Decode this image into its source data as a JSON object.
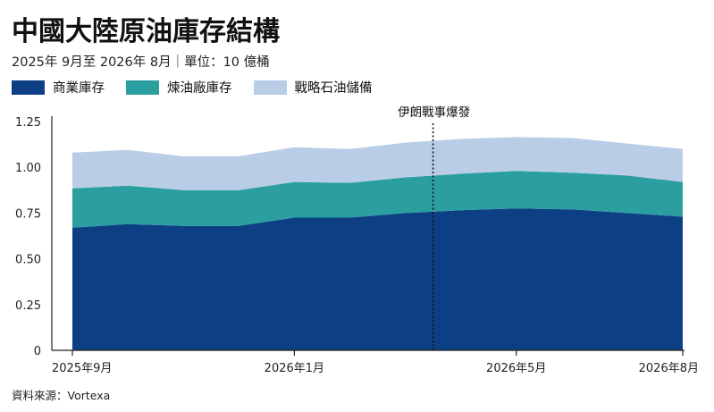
{
  "title": "中國大陸原油庫存結構",
  "subtitle": "2025年 9月至 2026年 8月｜單位：10 億桶",
  "source": "資料來源：Vortexa",
  "chart_data": {
    "type": "area",
    "stacked": true,
    "title": "中國大陸原油庫存結構",
    "subtitle": "2025年 9月至 2026年 8月｜單位：10 億桶",
    "xlabel": "",
    "ylabel": "",
    "ylim": [
      0,
      1.25
    ],
    "y_ticks": [
      "0",
      "0.25",
      "0.50",
      "0.75",
      "1.00",
      "1.25"
    ],
    "y_tick_values": [
      0,
      0.25,
      0.5,
      0.75,
      1.0,
      1.25
    ],
    "x_tick_labels": [
      "2025年9月",
      "2026年1月",
      "2026年5月",
      "2026年8月"
    ],
    "x_tick_positions": [
      0,
      4,
      8,
      11
    ],
    "legend_position": "top-left",
    "grid": false,
    "x": [
      0,
      1,
      2,
      3,
      4,
      5,
      6,
      7,
      8,
      9,
      10,
      11
    ],
    "series": [
      {
        "name": "商業庫存",
        "color": "#0d3f85",
        "values": [
          0.67,
          0.69,
          0.68,
          0.68,
          0.725,
          0.725,
          0.75,
          0.765,
          0.775,
          0.77,
          0.75,
          0.73
        ]
      },
      {
        "name": "煉油廠庫存",
        "color": "#2b9ea0",
        "values": [
          0.215,
          0.21,
          0.195,
          0.195,
          0.195,
          0.19,
          0.195,
          0.2,
          0.205,
          0.2,
          0.205,
          0.19
        ]
      },
      {
        "name": "戰略石油儲備",
        "color": "#b9cde6",
        "values": [
          0.195,
          0.195,
          0.185,
          0.185,
          0.19,
          0.185,
          0.19,
          0.19,
          0.185,
          0.19,
          0.175,
          0.18
        ]
      }
    ],
    "annotations": [
      {
        "text": "伊朗戰事爆發",
        "x": 6.5,
        "style": "dotted-vertical-line"
      }
    ]
  }
}
